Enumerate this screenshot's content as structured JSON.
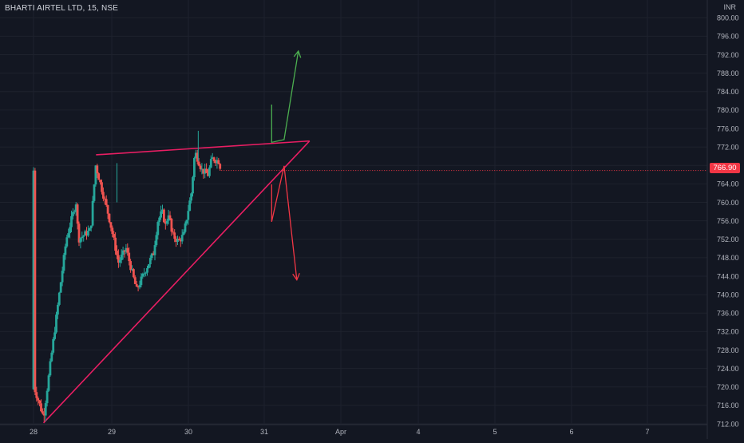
{
  "header": {
    "symbol": "BHARTI AIRTEL LTD, 15, NSE",
    "currency": "INR"
  },
  "last_price": "766.90",
  "colors": {
    "background": "#131722",
    "grid": "#1e222d",
    "up": "#26a69a",
    "down": "#ef5350",
    "trendline": "#e91e63",
    "bull_arrow": "#4caf50",
    "bear_arrow": "#f23645",
    "axis_text": "#b2b5be"
  },
  "chart_data": {
    "type": "candlestick",
    "timeframe": "15",
    "y_axis": {
      "ylim": [
        712,
        801
      ],
      "ticks": [
        712,
        716,
        720,
        724,
        728,
        732,
        736,
        740,
        744,
        748,
        752,
        756,
        760,
        764,
        768,
        772,
        776,
        780,
        784,
        788,
        792,
        796,
        800
      ],
      "tick_labels": [
        "712.00",
        "716.00",
        "720.00",
        "724.00",
        "728.00",
        "732.00",
        "736.00",
        "740.00",
        "744.00",
        "748.00",
        "752.00",
        "756.00",
        "760.00",
        "764.00",
        "768.00",
        "772.00",
        "776.00",
        "780.00",
        "784.00",
        "788.00",
        "792.00",
        "796.00",
        "800.00"
      ]
    },
    "x_axis": {
      "labels": [
        "28",
        "29",
        "30",
        "31",
        "Apr",
        "4",
        "5",
        "6",
        "7"
      ]
    },
    "grid": true,
    "anchors": [
      {
        "pt": [
          0.4,
          719.5
        ]
      },
      {
        "pt": [
          3.3,
          713.5
        ]
      },
      {
        "pt": [
          10.8,
          752
        ]
      },
      {
        "pt": [
          14,
          760
        ]
      },
      {
        "pt": [
          14.8,
          752
        ]
      },
      {
        "pt": [
          18.8,
          754
        ]
      },
      {
        "pt": [
          20.5,
          768
        ]
      },
      {
        "pt": [
          24.8,
          757
        ]
      },
      {
        "pt": [
          28,
          747
        ]
      },
      {
        "pt": [
          30.5,
          750
        ]
      },
      {
        "pt": [
          32.4,
          745
        ]
      },
      {
        "pt": [
          34,
          741
        ]
      },
      {
        "pt": [
          36,
          744
        ]
      },
      {
        "pt": [
          39.5,
          749
        ]
      },
      {
        "pt": [
          41,
          756
        ]
      },
      {
        "pt": [
          42.4,
          758
        ]
      },
      {
        "pt": [
          43.5,
          755
        ]
      },
      {
        "pt": [
          44.6,
          758
        ]
      },
      {
        "pt": [
          45.6,
          753
        ]
      },
      {
        "pt": [
          47.8,
          751.5
        ]
      },
      {
        "pt": [
          49.5,
          753
        ]
      },
      {
        "pt": [
          52,
          762
        ]
      },
      {
        "pt": [
          53.2,
          771
        ]
      },
      {
        "pt": [
          55.5,
          767
        ]
      },
      {
        "pt": [
          57.5,
          766
        ]
      },
      {
        "pt": [
          58.8,
          769.5
        ]
      },
      {
        "pt": [
          61,
          769
        ]
      },
      {
        "pt": [
          61.9,
          766.9
        ]
      }
    ],
    "bars_per_day": 25,
    "drawings": [
      {
        "kind": "trendline",
        "from": [
          3.3,
          712.2
        ],
        "to": [
          91,
          773.3
        ]
      },
      {
        "kind": "trendline",
        "from": [
          20.6,
          770.3
        ],
        "to": [
          91,
          773.3
        ]
      },
      {
        "kind": "projection-up",
        "points": [
          [
            78.5,
            781.2
          ],
          [
            78.5,
            773.0
          ],
          [
            82.6,
            773.6
          ],
          [
            87.3,
            792.8
          ]
        ]
      },
      {
        "kind": "projection-down",
        "points": [
          [
            78.5,
            763.9
          ],
          [
            78.5,
            755.8
          ],
          [
            82.6,
            767.9
          ],
          [
            86.8,
            743.2
          ]
        ]
      }
    ]
  }
}
